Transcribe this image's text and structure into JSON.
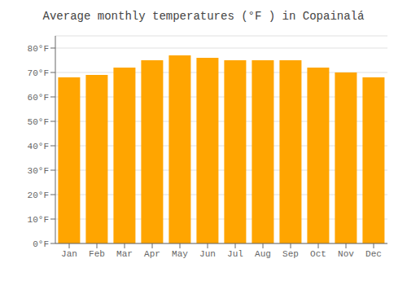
{
  "chart_data": {
    "type": "bar",
    "title": "Average monthly temperatures (°F ) in Copainalá",
    "categories": [
      "Jan",
      "Feb",
      "Mar",
      "Apr",
      "May",
      "Jun",
      "Jul",
      "Aug",
      "Sep",
      "Oct",
      "Nov",
      "Dec"
    ],
    "values": [
      68,
      69,
      72,
      75,
      77,
      76,
      75,
      75,
      75,
      72,
      70,
      68
    ],
    "color": "#FFA500",
    "ylim": [
      0,
      85
    ],
    "yticks": [
      {
        "value": 0,
        "label": "0°F"
      },
      {
        "value": 10,
        "label": "10°F"
      },
      {
        "value": 20,
        "label": "20°F"
      },
      {
        "value": 30,
        "label": "30°F"
      },
      {
        "value": 40,
        "label": "40°F"
      },
      {
        "value": 50,
        "label": "50°F"
      },
      {
        "value": 60,
        "label": "60°F"
      },
      {
        "value": 70,
        "label": "70°F"
      },
      {
        "value": 80,
        "label": "80°F"
      }
    ],
    "grid": true
  }
}
